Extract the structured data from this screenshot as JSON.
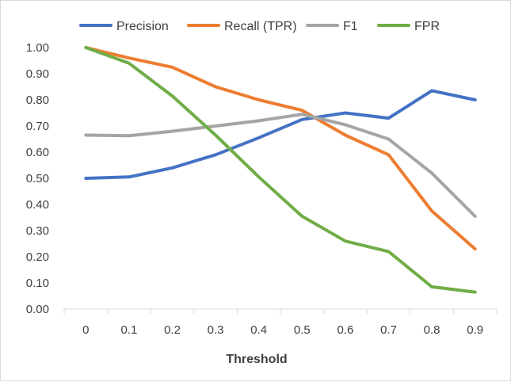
{
  "chart_data": {
    "type": "line",
    "title": "",
    "xlabel": "Threshold",
    "ylabel": "",
    "categories": [
      "0",
      "0.1",
      "0.2",
      "0.3",
      "0.4",
      "0.5",
      "0.6",
      "0.7",
      "0.8",
      "0.9"
    ],
    "ylim": [
      0,
      1
    ],
    "yticks": [
      "0.00",
      "0.10",
      "0.20",
      "0.30",
      "0.40",
      "0.50",
      "0.60",
      "0.70",
      "0.80",
      "0.90",
      "1.00"
    ],
    "legend_position": "top",
    "grid": false,
    "series": [
      {
        "name": "Precision",
        "color": "#4472C4",
        "values": [
          0.5,
          0.505,
          0.54,
          0.59,
          0.655,
          0.725,
          0.75,
          0.73,
          0.835,
          0.8
        ]
      },
      {
        "name": "Recall (TPR)",
        "color": "#ED7D31",
        "values": [
          1.0,
          0.96,
          0.925,
          0.85,
          0.8,
          0.76,
          0.665,
          0.59,
          0.375,
          0.23
        ]
      },
      {
        "name": "F1",
        "color": "#A5A5A5",
        "values": [
          0.665,
          0.663,
          0.68,
          0.7,
          0.72,
          0.745,
          0.705,
          0.65,
          0.52,
          0.355
        ]
      },
      {
        "name": "FPR",
        "color": "#70AD47",
        "values": [
          1.0,
          0.94,
          0.815,
          0.665,
          0.505,
          0.355,
          0.26,
          0.22,
          0.085,
          0.065
        ]
      }
    ]
  }
}
